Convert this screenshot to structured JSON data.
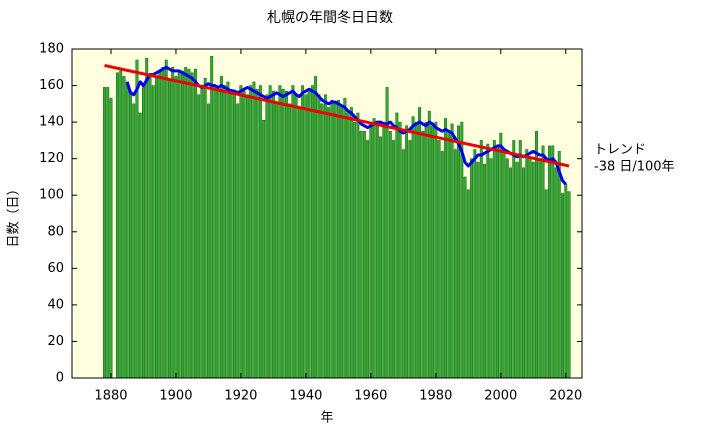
{
  "chart_data": {
    "type": "bar",
    "title": "札幌の年間冬日日数",
    "xlabel": "年",
    "ylabel": "日数（日）",
    "annotations": [
      "トレンド",
      "-38 日/100年"
    ],
    "xlim": [
      1868,
      2025
    ],
    "ylim": [
      0,
      180
    ],
    "xticks": [
      1880,
      1900,
      1920,
      1940,
      1960,
      1980,
      2000,
      2020
    ],
    "yticks": [
      0,
      20,
      40,
      60,
      80,
      100,
      120,
      140,
      160,
      180
    ],
    "background": "#ffffe0",
    "x": [
      1878,
      1879,
      1880,
      1881,
      1882,
      1883,
      1884,
      1885,
      1886,
      1887,
      1888,
      1889,
      1890,
      1891,
      1892,
      1893,
      1894,
      1895,
      1896,
      1897,
      1898,
      1899,
      1900,
      1901,
      1902,
      1903,
      1904,
      1905,
      1906,
      1907,
      1908,
      1909,
      1910,
      1911,
      1912,
      1913,
      1914,
      1915,
      1916,
      1917,
      1918,
      1919,
      1920,
      1921,
      1922,
      1923,
      1924,
      1925,
      1926,
      1927,
      1928,
      1929,
      1930,
      1931,
      1932,
      1933,
      1934,
      1935,
      1936,
      1937,
      1938,
      1939,
      1940,
      1941,
      1942,
      1943,
      1944,
      1945,
      1946,
      1947,
      1948,
      1949,
      1950,
      1951,
      1952,
      1953,
      1954,
      1955,
      1956,
      1957,
      1958,
      1959,
      1960,
      1961,
      1962,
      1963,
      1964,
      1965,
      1966,
      1967,
      1968,
      1969,
      1970,
      1971,
      1972,
      1973,
      1974,
      1975,
      1976,
      1977,
      1978,
      1979,
      1980,
      1981,
      1982,
      1983,
      1984,
      1985,
      1986,
      1987,
      1988,
      1989,
      1990,
      1991,
      1992,
      1993,
      1994,
      1995,
      1996,
      1997,
      1998,
      1999,
      2000,
      2001,
      2002,
      2003,
      2004,
      2005,
      2006,
      2007,
      2008,
      2009,
      2010,
      2011,
      2012,
      2013,
      2014,
      2015,
      2016,
      2017,
      2018,
      2019,
      2020,
      2021
    ],
    "series": [
      {
        "type": "bar",
        "color": "#33aa33",
        "values": [
          159,
          159,
          153,
          null,
          167,
          168,
          165,
          162,
          157,
          150,
          174,
          145,
          160,
          175,
          165,
          160,
          165,
          168,
          170,
          174,
          163,
          170,
          165,
          167,
          168,
          170,
          169,
          167,
          169,
          155,
          160,
          164,
          150,
          176,
          160,
          158,
          165,
          160,
          162,
          158,
          157,
          150,
          160,
          157,
          155,
          160,
          162,
          158,
          160,
          141,
          155,
          160,
          157,
          150,
          160,
          158,
          157,
          150,
          160,
          155,
          148,
          160,
          155,
          158,
          160,
          165,
          155,
          150,
          155,
          148,
          152,
          150,
          152,
          148,
          153,
          145,
          148,
          140,
          145,
          135,
          135,
          130,
          140,
          142,
          138,
          132,
          140,
          159,
          135,
          130,
          145,
          140,
          125,
          138,
          130,
          143,
          140,
          148,
          135,
          140,
          146,
          138,
          140,
          130,
          124,
          142,
          135,
          139,
          125,
          138,
          140,
          110,
          103,
          120,
          125,
          118,
          130,
          117,
          128,
          120,
          130,
          127,
          134,
          125,
          120,
          115,
          130,
          118,
          130,
          115,
          125,
          120,
          118,
          135,
          120,
          127,
          103,
          127,
          127,
          115,
          124,
          101,
          106,
          102
        ]
      },
      {
        "type": "line",
        "color": "#0000ee",
        "values": [
          null,
          null,
          null,
          null,
          null,
          null,
          null,
          162,
          156,
          155,
          158,
          162,
          160,
          163,
          166,
          166,
          167,
          168,
          169,
          170,
          169,
          168,
          168,
          168,
          167,
          166,
          165,
          164,
          162,
          160,
          159,
          160,
          161,
          160,
          160,
          159,
          160,
          159,
          158,
          157,
          157,
          156,
          157,
          158,
          159,
          158,
          157,
          156,
          155,
          154,
          153,
          154,
          155,
          156,
          155,
          154,
          155,
          156,
          157,
          155,
          154,
          156,
          157,
          158,
          157,
          156,
          154,
          152,
          151,
          150,
          151,
          151,
          150,
          149,
          148,
          146,
          145,
          143,
          141,
          139,
          138,
          137,
          138,
          139,
          140,
          140,
          139,
          139,
          140,
          138,
          137,
          135,
          134,
          135,
          136,
          138,
          139,
          140,
          139,
          138,
          140,
          139,
          137,
          136,
          135,
          136,
          135,
          134,
          131,
          128,
          124,
          118,
          116,
          118,
          120,
          122,
          122,
          123,
          124,
          125,
          126,
          127,
          127,
          125,
          124,
          123,
          122,
          121,
          122,
          121,
          122,
          123,
          124,
          123,
          122,
          122,
          120,
          119,
          120,
          118,
          113,
          108,
          106,
          null
        ]
      }
    ],
    "trend": {
      "x": [
        1878,
        2021
      ],
      "values": [
        171,
        116
      ],
      "color": "#ee0000"
    }
  }
}
